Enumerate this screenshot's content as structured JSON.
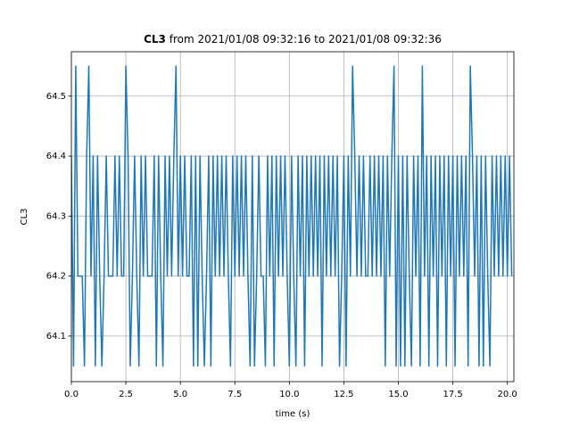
{
  "chart_data": {
    "type": "line",
    "title_bold": "CL3",
    "title_rest": "from 2021/01/08 09:32:16 to 2021/01/08 09:32:36",
    "x_label": "time (s)",
    "y_label": "CL3",
    "xlim": [
      0,
      20.3
    ],
    "ylim": [
      64.024,
      64.574
    ],
    "xticks": [
      {
        "value": 0,
        "label": "0.0"
      },
      2.5,
      {
        "value": 5,
        "label": "5.0"
      },
      7.5,
      {
        "value": 10,
        "label": "10.0"
      },
      12.5,
      {
        "value": 15,
        "label": "15.0"
      },
      17.5,
      {
        "value": 20,
        "label": "20.0"
      }
    ],
    "yticks": [
      64.1,
      64.2,
      64.3,
      64.4,
      64.5
    ],
    "grid": true,
    "x": [
      0,
      0.1,
      0.2,
      0.3,
      0.4,
      0.5,
      0.6,
      0.7,
      0.8,
      0.9,
      1,
      1.1,
      1.2,
      1.3,
      1.4,
      1.5,
      1.6,
      1.7,
      1.8,
      1.9,
      2,
      2.1,
      2.2,
      2.3,
      2.4,
      2.5,
      2.6,
      2.7,
      2.8,
      2.9,
      3,
      3.1,
      3.2,
      3.3,
      3.4,
      3.5,
      3.6,
      3.7,
      3.8,
      3.9,
      4,
      4.1,
      4.2,
      4.3,
      4.4,
      4.5,
      4.6,
      4.7,
      4.8,
      4.9,
      5,
      5.1,
      5.2,
      5.3,
      5.4,
      5.5,
      5.6,
      5.7,
      5.8,
      5.9,
      6,
      6.1,
      6.2,
      6.3,
      6.4,
      6.5,
      6.6,
      6.7,
      6.8,
      6.9,
      7,
      7.1,
      7.2,
      7.3,
      7.4,
      7.5,
      7.6,
      7.7,
      7.8,
      7.9,
      8,
      8.1,
      8.2,
      8.3,
      8.4,
      8.5,
      8.6,
      8.7,
      8.8,
      8.9,
      9,
      9.1,
      9.2,
      9.3,
      9.4,
      9.5,
      9.6,
      9.7,
      9.8,
      9.9,
      10,
      10.1,
      10.2,
      10.3,
      10.4,
      10.5,
      10.6,
      10.7,
      10.8,
      10.9,
      11,
      11.1,
      11.2,
      11.3,
      11.4,
      11.5,
      11.6,
      11.7,
      11.8,
      11.9,
      12,
      12.1,
      12.2,
      12.3,
      12.4,
      12.5,
      12.6,
      12.7,
      12.8,
      12.9,
      13,
      13.1,
      13.2,
      13.3,
      13.4,
      13.5,
      13.6,
      13.7,
      13.8,
      13.9,
      14,
      14.1,
      14.2,
      14.3,
      14.4,
      14.5,
      14.6,
      14.7,
      14.8,
      14.9,
      15,
      15.1,
      15.2,
      15.3,
      15.4,
      15.5,
      15.6,
      15.7,
      15.8,
      15.9,
      16,
      16.1,
      16.2,
      16.3,
      16.4,
      16.5,
      16.6,
      16.7,
      16.8,
      16.9,
      17,
      17.1,
      17.2,
      17.3,
      17.4,
      17.5,
      17.6,
      17.7,
      17.8,
      17.9,
      18,
      18.1,
      18.2,
      18.3,
      18.4,
      18.5,
      18.6,
      18.7,
      18.8,
      18.9,
      19,
      19.1,
      19.2,
      19.3,
      19.4,
      19.5,
      19.6,
      19.7,
      19.8,
      19.9,
      20,
      20.1,
      20.2
    ],
    "series": [
      {
        "name": "CL3",
        "color": "#1f77b4",
        "values": [
          64.4,
          64.05,
          64.55,
          64.2,
          64.2,
          64.2,
          64.05,
          64.4,
          64.55,
          64.2,
          64.4,
          64.05,
          64.4,
          64.2,
          64.05,
          64.2,
          64.4,
          64.2,
          64.2,
          64.2,
          64.4,
          64.2,
          64.4,
          64.2,
          64.2,
          64.55,
          64.4,
          64.05,
          64.2,
          64.4,
          64.2,
          64.05,
          64.4,
          64.2,
          64.4,
          64.2,
          64.2,
          64.2,
          64.4,
          64.05,
          64.4,
          64.2,
          64.05,
          64.4,
          64.2,
          64.4,
          64.2,
          64.4,
          64.55,
          64.2,
          64.4,
          64.2,
          64.4,
          64.2,
          64.2,
          64.4,
          64.05,
          64.4,
          64.05,
          64.4,
          64.2,
          64.05,
          64.2,
          64.4,
          64.05,
          64.4,
          64.2,
          64.4,
          64.2,
          64.4,
          64.2,
          64.4,
          64.2,
          64.05,
          64.4,
          64.2,
          64.4,
          64.2,
          64.4,
          64.2,
          64.4,
          64.2,
          64.05,
          64.4,
          64.05,
          64.2,
          64.4,
          64.2,
          64.2,
          64.05,
          64.4,
          64.2,
          64.4,
          64.05,
          64.4,
          64.2,
          64.4,
          64.2,
          64.4,
          64.2,
          64.05,
          64.4,
          64.2,
          64.05,
          64.4,
          64.2,
          64.4,
          64.05,
          64.4,
          64.2,
          64.4,
          64.2,
          64.4,
          64.2,
          64.4,
          64.05,
          64.4,
          64.2,
          64.4,
          64.2,
          64.4,
          64.2,
          64.4,
          64.05,
          64.2,
          64.4,
          64.05,
          64.4,
          64.2,
          64.55,
          64.4,
          64.2,
          64.4,
          64.2,
          64.4,
          64.2,
          64.2,
          64.4,
          64.2,
          64.4,
          64.2,
          64.4,
          64.2,
          64.4,
          64.05,
          64.4,
          64.2,
          64.4,
          64.55,
          64.05,
          64.4,
          64.05,
          64.4,
          64.05,
          64.4,
          64.2,
          64.05,
          64.4,
          64.2,
          64.4,
          64.05,
          64.55,
          64.2,
          64.4,
          64.05,
          64.4,
          64.2,
          64.4,
          64.05,
          64.4,
          64.2,
          64.4,
          64.05,
          64.4,
          64.2,
          64.4,
          64.05,
          64.4,
          64.2,
          64.4,
          64.2,
          64.4,
          64.05,
          64.55,
          64.4,
          64.2,
          64.4,
          64.05,
          64.4,
          64.05,
          64.4,
          64.2,
          64.05,
          64.4,
          64.2,
          64.4,
          64.2,
          64.4,
          64.2,
          64.4,
          64.2,
          64.4,
          64.2
        ]
      }
    ]
  }
}
